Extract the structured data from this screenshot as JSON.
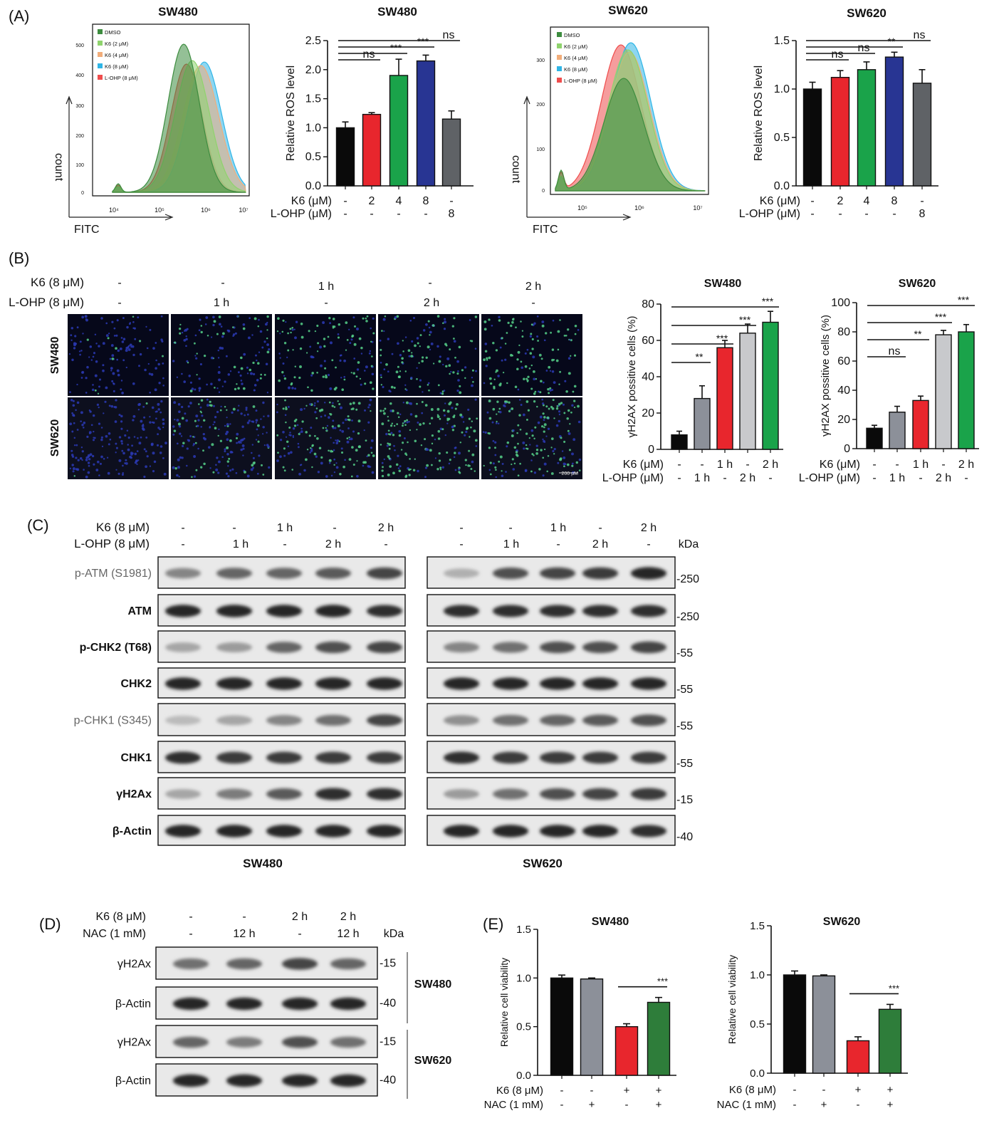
{
  "panel_labels": {
    "A": "(A)",
    "B": "(B)",
    "C": "(C)",
    "D": "(D)",
    "E": "(E)"
  },
  "colors": {
    "black": "#0a0a0a",
    "red": "#e8262d",
    "green": "#1aa34a",
    "navy": "#283593",
    "gray": "#5f6266",
    "lightgray": "#c8c9cc",
    "mgray": "#8c9099",
    "dkgreen": "#2e7d3a",
    "flow_darkgreen": "#3d8c3f",
    "flow_lightgreen": "#8fd36d",
    "flow_orange": "#f2ad7a",
    "flow_cyan": "#2fb5e6",
    "flow_red": "#ef4d4d",
    "nucleus_blue": "#2c3ab5",
    "nucleus_green": "#56d08a"
  },
  "icons": {
    "ghost": "none"
  },
  "flow": [
    {
      "title": "SW480",
      "xlabel": "FITC",
      "ylabel": "count",
      "yticks": [
        "0",
        "100",
        "200",
        "300",
        "400",
        "500"
      ],
      "xticks": [
        "10⁴",
        "10⁵",
        "10⁶",
        "10⁷"
      ],
      "legend": [
        "DMSO",
        "K6 (2 μM)",
        "K6 (4 μM)",
        "K6 (8 μM)",
        "L-OHP (8 μM)"
      ]
    },
    {
      "title": "SW620",
      "xlabel": "FITC",
      "ylabel": "count",
      "yticks": [
        "0",
        "100",
        "200",
        "300"
      ],
      "xticks": [
        "10⁵",
        "10⁶",
        "10⁷"
      ],
      "legend": [
        "DMSO",
        "K6 (2 μM)",
        "K6 (4 μM)",
        "K6 (8 μM)",
        "L-OHP (8 μM)"
      ]
    }
  ],
  "chart_data": [
    {
      "type": "bar",
      "title": "SW480",
      "ylabel": "Relative ROS level",
      "ylim": [
        0,
        2.5
      ],
      "yticks": [
        "0.0",
        "0.5",
        "1.0",
        "1.5",
        "2.0",
        "2.5"
      ],
      "categories": [
        "1",
        "2",
        "3",
        "4",
        "5"
      ],
      "values": [
        1.0,
        1.23,
        1.9,
        2.15,
        1.15
      ],
      "errors": [
        0.1,
        0.03,
        0.28,
        0.1,
        0.14
      ],
      "colors": [
        "black",
        "red",
        "green",
        "navy",
        "gray"
      ],
      "cond_labels": [
        "K6 (μM)",
        "L-OHP (μM)"
      ],
      "cond_rows": [
        [
          "-",
          "2",
          "4",
          "8",
          "-"
        ],
        [
          "-",
          "-",
          "-",
          "-",
          "8"
        ]
      ],
      "sig": [
        {
          "label": "ns",
          "to": 2
        },
        {
          "label": "***",
          "to": 3
        },
        {
          "label": "***",
          "to": 4
        },
        {
          "label": "ns",
          "to": 5
        }
      ]
    },
    {
      "type": "bar",
      "title": "SW620",
      "ylabel": "Relative ROS level",
      "ylim": [
        0,
        1.5
      ],
      "yticks": [
        "0.0",
        "0.5",
        "1.0",
        "1.5"
      ],
      "categories": [
        "1",
        "2",
        "3",
        "4",
        "5"
      ],
      "values": [
        1.0,
        1.12,
        1.2,
        1.33,
        1.06
      ],
      "errors": [
        0.07,
        0.07,
        0.08,
        0.05,
        0.14
      ],
      "colors": [
        "black",
        "red",
        "green",
        "navy",
        "gray"
      ],
      "cond_labels": [
        "K6 (μM)",
        "L-OHP (μM)"
      ],
      "cond_rows": [
        [
          "-",
          "2",
          "4",
          "8",
          "-"
        ],
        [
          "-",
          "-",
          "-",
          "-",
          "8"
        ]
      ],
      "sig": [
        {
          "label": "ns",
          "to": 2
        },
        {
          "label": "ns",
          "to": 3
        },
        {
          "label": "**",
          "to": 4
        },
        {
          "label": "ns",
          "to": 5
        }
      ]
    },
    {
      "type": "bar",
      "title": "SW480",
      "ylabel": "γH2AX possitive cells (%)",
      "ylim": [
        0,
        80
      ],
      "yticks": [
        "0",
        "20",
        "40",
        "60",
        "80"
      ],
      "categories": [
        "1",
        "2",
        "3",
        "4",
        "5"
      ],
      "values": [
        8,
        28,
        56,
        64,
        70
      ],
      "errors": [
        2,
        7,
        4,
        5,
        6
      ],
      "colors": [
        "black",
        "mgray",
        "red",
        "lightgray",
        "green"
      ],
      "cond_labels": [
        "K6 (μM)",
        "L-OHP (μM)"
      ],
      "cond_rows": [
        [
          "-",
          "-",
          "1 h",
          "-",
          "2 h"
        ],
        [
          "-",
          "1 h",
          "-",
          "2 h",
          "-"
        ]
      ],
      "sig": [
        {
          "label": "**",
          "to": 2
        },
        {
          "label": "***",
          "to": 3
        },
        {
          "label": "***",
          "to": 4
        },
        {
          "label": "***",
          "to": 5
        }
      ]
    },
    {
      "type": "bar",
      "title": "SW620",
      "ylabel": "γH2AX possitive cells (%)",
      "ylim": [
        0,
        100
      ],
      "yticks": [
        "0",
        "20",
        "40",
        "60",
        "80",
        "100"
      ],
      "categories": [
        "1",
        "2",
        "3",
        "4",
        "5"
      ],
      "values": [
        14,
        25,
        33,
        78,
        80
      ],
      "errors": [
        2,
        4,
        3,
        3,
        5
      ],
      "colors": [
        "black",
        "mgray",
        "red",
        "lightgray",
        "green"
      ],
      "cond_labels": [
        "K6 (μM)",
        "L-OHP (μM)"
      ],
      "cond_rows": [
        [
          "-",
          "-",
          "1 h",
          "-",
          "2 h"
        ],
        [
          "-",
          "1 h",
          "-",
          "2 h",
          "-"
        ]
      ],
      "sig": [
        {
          "label": "ns",
          "to": 2
        },
        {
          "label": "**",
          "to": 3
        },
        {
          "label": "***",
          "to": 4
        },
        {
          "label": "***",
          "to": 5
        }
      ]
    },
    {
      "type": "bar",
      "title": "SW480",
      "ylabel": "Relative cell viability",
      "ylim": [
        0,
        1.5
      ],
      "yticks": [
        "0.0",
        "0.5",
        "1.0",
        "1.5"
      ],
      "categories": [
        "1",
        "2",
        "3",
        "4"
      ],
      "values": [
        1.0,
        0.99,
        0.5,
        0.75
      ],
      "errors": [
        0.03,
        0.01,
        0.03,
        0.05
      ],
      "colors": [
        "black",
        "mgray",
        "red",
        "dkgreen"
      ],
      "cond_labels": [
        "K6 (8 μM)",
        "NAC (1 mM)"
      ],
      "cond_rows": [
        [
          "-",
          "-",
          "+",
          "+"
        ],
        [
          "-",
          "+",
          "-",
          "+"
        ]
      ],
      "sig": [
        {
          "label": "***",
          "from": 3,
          "to": 4
        }
      ]
    },
    {
      "type": "bar",
      "title": "SW620",
      "ylabel": "Relative cell viability",
      "ylim": [
        0,
        1.5
      ],
      "yticks": [
        "0.0",
        "0.5",
        "1.0",
        "1.5"
      ],
      "categories": [
        "1",
        "2",
        "3",
        "4"
      ],
      "values": [
        1.0,
        0.99,
        0.33,
        0.65
      ],
      "errors": [
        0.04,
        0.01,
        0.04,
        0.05
      ],
      "colors": [
        "black",
        "mgray",
        "red",
        "dkgreen"
      ],
      "cond_labels": [
        "K6 (8 μM)",
        "NAC (1 mM)"
      ],
      "cond_rows": [
        [
          "-",
          "-",
          "+",
          "+"
        ],
        [
          "-",
          "+",
          "-",
          "+"
        ]
      ],
      "sig": [
        {
          "label": "***",
          "from": 3,
          "to": 4
        }
      ]
    }
  ],
  "if": {
    "row_k6": "K6 (8 μM)",
    "row_lohp": "L-OHP (8 μM)",
    "k6_values": [
      "-",
      "-",
      "1 h",
      "-",
      "2 h"
    ],
    "lohp_values": [
      "-",
      "1 h",
      "-",
      "2 h",
      "-"
    ],
    "cell_lines": [
      "SW480",
      "SW620"
    ],
    "scale": "200 μM",
    "green_level": [
      [
        0.05,
        0.25,
        0.55,
        0.6,
        0.7
      ],
      [
        0.02,
        0.2,
        0.45,
        0.7,
        0.6
      ]
    ]
  },
  "western_c": {
    "k6_label": "K6 (8 μM)",
    "lohp_label": "L-OHP (8 μM)",
    "k6_values": [
      "-",
      "-",
      "1 h",
      "-",
      "2 h"
    ],
    "lohp_values": [
      "-",
      "1 h",
      "-",
      "2 h",
      "-"
    ],
    "kda": "kDa",
    "groups": [
      "SW480",
      "SW620"
    ],
    "rows": [
      {
        "label": "p-ATM (S1981)",
        "kda": "-250",
        "i480": [
          0.45,
          0.6,
          0.6,
          0.65,
          0.75
        ],
        "i620": [
          0.25,
          0.7,
          0.75,
          0.8,
          0.9
        ]
      },
      {
        "label": "ATM",
        "kda": "-250",
        "i480": [
          0.9,
          0.9,
          0.9,
          0.9,
          0.85
        ],
        "i620": [
          0.85,
          0.85,
          0.85,
          0.85,
          0.85
        ]
      },
      {
        "label": "p-CHK2 (T68)",
        "kda": "-55",
        "i480": [
          0.3,
          0.35,
          0.6,
          0.7,
          0.75
        ],
        "i620": [
          0.45,
          0.55,
          0.7,
          0.7,
          0.75
        ]
      },
      {
        "label": "CHK2",
        "kda": "-55",
        "i480": [
          0.9,
          0.9,
          0.9,
          0.9,
          0.9
        ],
        "i620": [
          0.9,
          0.9,
          0.9,
          0.9,
          0.9
        ]
      },
      {
        "label": "p-CHK1 (S345)",
        "kda": "-55",
        "i480": [
          0.2,
          0.3,
          0.45,
          0.55,
          0.75
        ],
        "i620": [
          0.4,
          0.55,
          0.6,
          0.65,
          0.7
        ]
      },
      {
        "label": "CHK1",
        "kda": "-55",
        "i480": [
          0.85,
          0.8,
          0.8,
          0.8,
          0.8
        ],
        "i620": [
          0.85,
          0.8,
          0.8,
          0.8,
          0.8
        ]
      },
      {
        "label": "γH2Ax",
        "kda": "-15",
        "i480": [
          0.3,
          0.5,
          0.65,
          0.85,
          0.85
        ],
        "i620": [
          0.35,
          0.55,
          0.7,
          0.75,
          0.8
        ]
      },
      {
        "label": "β-Actin",
        "kda": "-40",
        "i480": [
          0.9,
          0.9,
          0.9,
          0.9,
          0.9
        ],
        "i620": [
          0.9,
          0.9,
          0.9,
          0.9,
          0.85
        ]
      }
    ]
  },
  "western_d": {
    "k6_label": "K6 (8 μM)",
    "nac_label": "NAC (1 mM)",
    "k6_values": [
      "-",
      "-",
      "2 h",
      "2 h"
    ],
    "nac_values": [
      "-",
      "12 h",
      "-",
      "12 h"
    ],
    "kda": "kDa",
    "rows": [
      {
        "label": "γH2Ax",
        "kda": "-15",
        "intensity": [
          0.55,
          0.6,
          0.75,
          0.6
        ]
      },
      {
        "label": "β-Actin",
        "kda": "-40",
        "intensity": [
          0.9,
          0.9,
          0.9,
          0.9
        ]
      },
      {
        "label": "γH2Ax",
        "kda": "-15",
        "intensity": [
          0.6,
          0.5,
          0.7,
          0.55
        ]
      },
      {
        "label": "β-Actin",
        "kda": "-40",
        "intensity": [
          0.9,
          0.9,
          0.9,
          0.9
        ]
      }
    ],
    "groups": [
      "SW480",
      "SW620"
    ]
  }
}
